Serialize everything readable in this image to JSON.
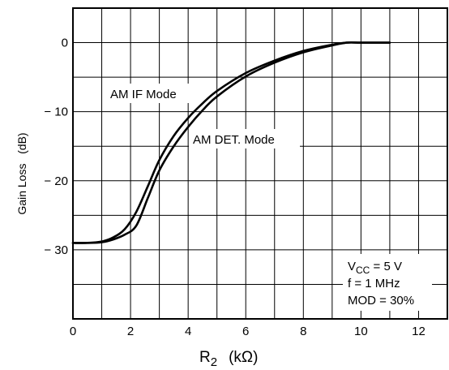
{
  "chart_data": {
    "type": "line",
    "title": "",
    "xlabel": {
      "main": "R",
      "sub": "2",
      "unit": "(kΩ)"
    },
    "ylabel": "Gain Loss   (dB)",
    "xlim": [
      0,
      13
    ],
    "ylim": [
      -40,
      5
    ],
    "x_ticks": [
      0,
      2,
      4,
      6,
      8,
      10,
      12
    ],
    "y_ticks": [
      0,
      -10,
      -20,
      -30
    ],
    "y_tick_labels": [
      "0",
      "− 10",
      "− 20",
      "− 30"
    ],
    "grid": true,
    "series": [
      {
        "name": "AM IF Mode",
        "x": [
          0,
          0.5,
          1.0,
          1.4,
          1.8,
          2.2,
          2.6,
          3.0,
          3.5,
          4.0,
          4.5,
          5.0,
          6.0,
          7.0,
          8.0,
          9.0,
          9.5,
          10.0,
          11.0
        ],
        "y": [
          -29,
          -29,
          -28.8,
          -28.2,
          -27.0,
          -24.5,
          -20.8,
          -17.0,
          -13.5,
          -10.9,
          -8.8,
          -7.0,
          -4.4,
          -2.6,
          -1.2,
          -0.3,
          0,
          0,
          0
        ]
      },
      {
        "name": "AM DET. Mode",
        "x": [
          0,
          0.5,
          1.0,
          1.4,
          1.8,
          2.2,
          2.6,
          3.0,
          3.5,
          4.0,
          4.5,
          5.0,
          6.0,
          7.0,
          8.0,
          9.0,
          9.5,
          10.0,
          11.0
        ],
        "y": [
          -29,
          -29,
          -28.9,
          -28.5,
          -27.8,
          -26.5,
          -22.5,
          -18.5,
          -15.0,
          -12.2,
          -9.8,
          -7.8,
          -4.9,
          -2.9,
          -1.4,
          -0.4,
          0,
          0,
          0
        ]
      }
    ],
    "annotations": {
      "if_label": "AM IF Mode",
      "det_label": "AM DET. Mode",
      "conditions": {
        "vcc_main": "V",
        "vcc_sub": "CC",
        "vcc_rest": " = 5 V",
        "freq": "f = 1 MHz",
        "mod": "MOD = 30%"
      }
    }
  }
}
